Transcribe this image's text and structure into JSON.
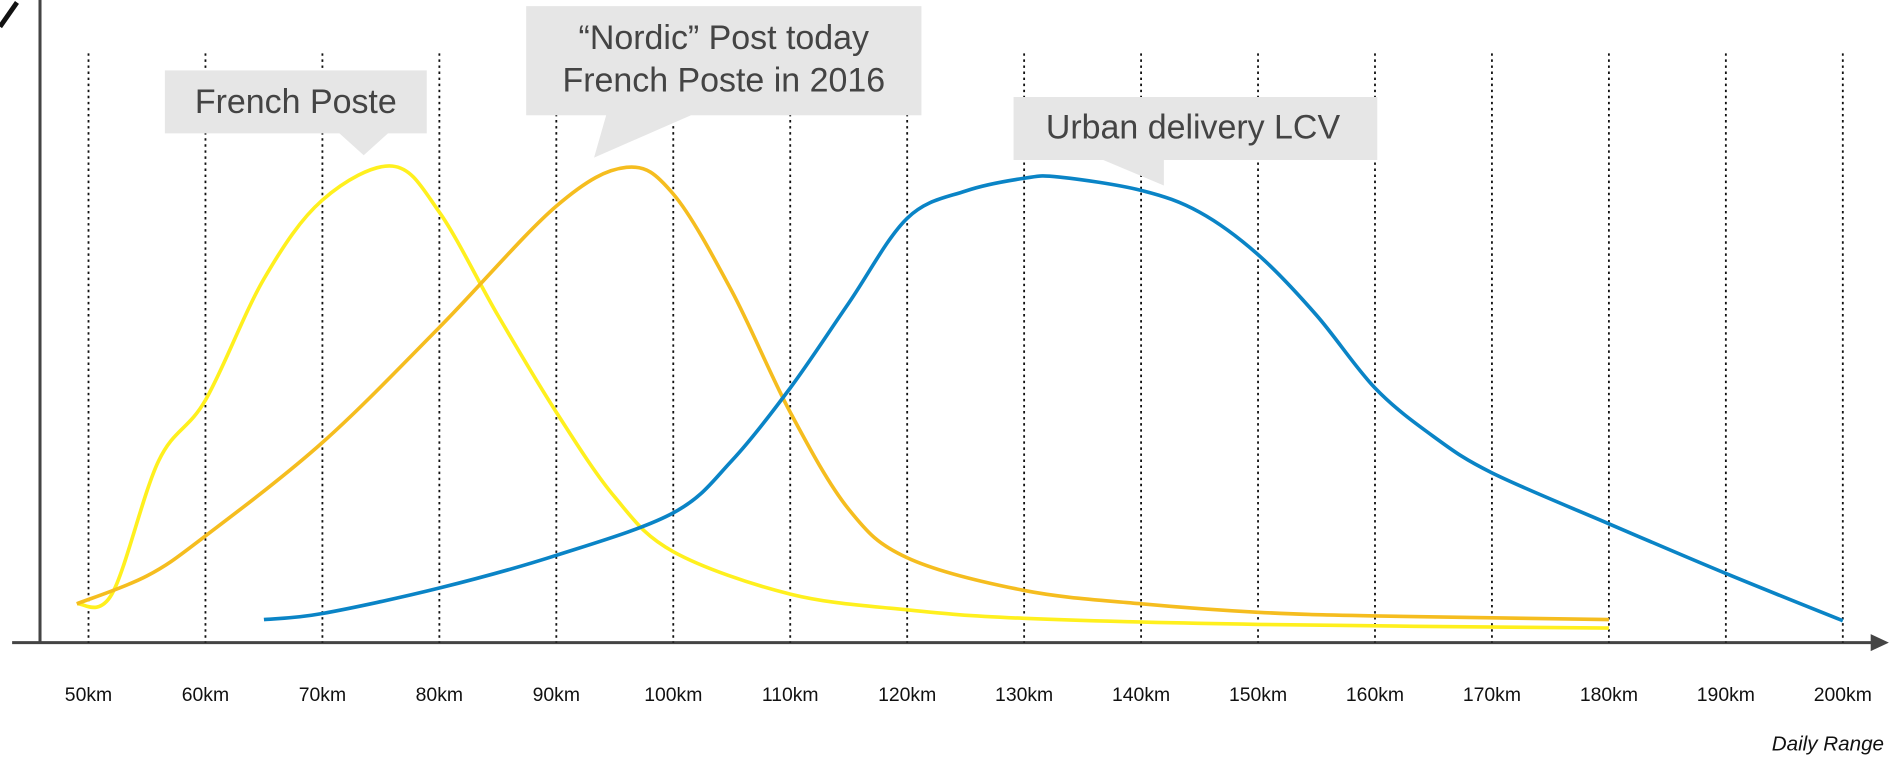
{
  "chart_data": {
    "type": "line",
    "x_label": "Daily Range",
    "xlim": [
      45,
      207
    ],
    "ylim": [
      0,
      100
    ],
    "xticks": [
      {
        "value": 50,
        "label": "50km"
      },
      {
        "value": 60,
        "label": "60km"
      },
      {
        "value": 70,
        "label": "70km"
      },
      {
        "value": 80,
        "label": "80km"
      },
      {
        "value": 90,
        "label": "90km"
      },
      {
        "value": 100,
        "label": "100km"
      },
      {
        "value": 110,
        "label": "110km"
      },
      {
        "value": 120,
        "label": "120km"
      },
      {
        "value": 130,
        "label": "130km"
      },
      {
        "value": 140,
        "label": "140km"
      },
      {
        "value": 150,
        "label": "150km"
      },
      {
        "value": 160,
        "label": "160km"
      },
      {
        "value": 170,
        "label": "170km"
      },
      {
        "value": 180,
        "label": "180km"
      },
      {
        "value": 190,
        "label": "190km"
      },
      {
        "value": 200,
        "label": "200km"
      }
    ],
    "grid": true,
    "series": [
      {
        "color": "#fff01e",
        "x": [
          49,
          52,
          56,
          60,
          65,
          70,
          76,
          80,
          85,
          90,
          95,
          100,
          110,
          120,
          130,
          150,
          180
        ],
        "values": [
          6.4,
          8,
          30,
          40,
          60,
          73,
          78.6,
          71,
          54,
          38,
          24,
          15,
          8,
          5.4,
          4,
          3,
          2.4
        ]
      },
      {
        "color": "#f5bd1f",
        "x": [
          49,
          55,
          60,
          70,
          80,
          90,
          96,
          100,
          105,
          110,
          115,
          120,
          130,
          140,
          150,
          160,
          180
        ],
        "values": [
          6.4,
          11,
          17.6,
          33,
          52,
          72,
          78.4,
          74,
          58,
          38,
          22,
          14,
          8.6,
          6.4,
          5,
          4.4,
          3.8
        ]
      },
      {
        "color": "#0a84c6",
        "x": [
          65,
          70,
          80,
          90,
          100,
          105,
          110,
          115,
          120,
          125,
          130,
          133,
          140,
          145,
          150,
          155,
          160,
          165,
          170,
          180,
          190,
          200
        ],
        "values": [
          3.8,
          4.8,
          9,
          14.4,
          21.4,
          30,
          42,
          56,
          70,
          74.5,
          76.6,
          76.8,
          74.6,
          71,
          64,
          54,
          42,
          34,
          28,
          19.6,
          11.4,
          3.6
        ]
      }
    ],
    "annotations": [
      {
        "lines": [
          "French Poste"
        ]
      },
      {
        "lines": [
          "“Nordic” Post today",
          "French Poste in 2016"
        ]
      },
      {
        "lines": [
          "Urban delivery LCV"
        ]
      }
    ]
  }
}
